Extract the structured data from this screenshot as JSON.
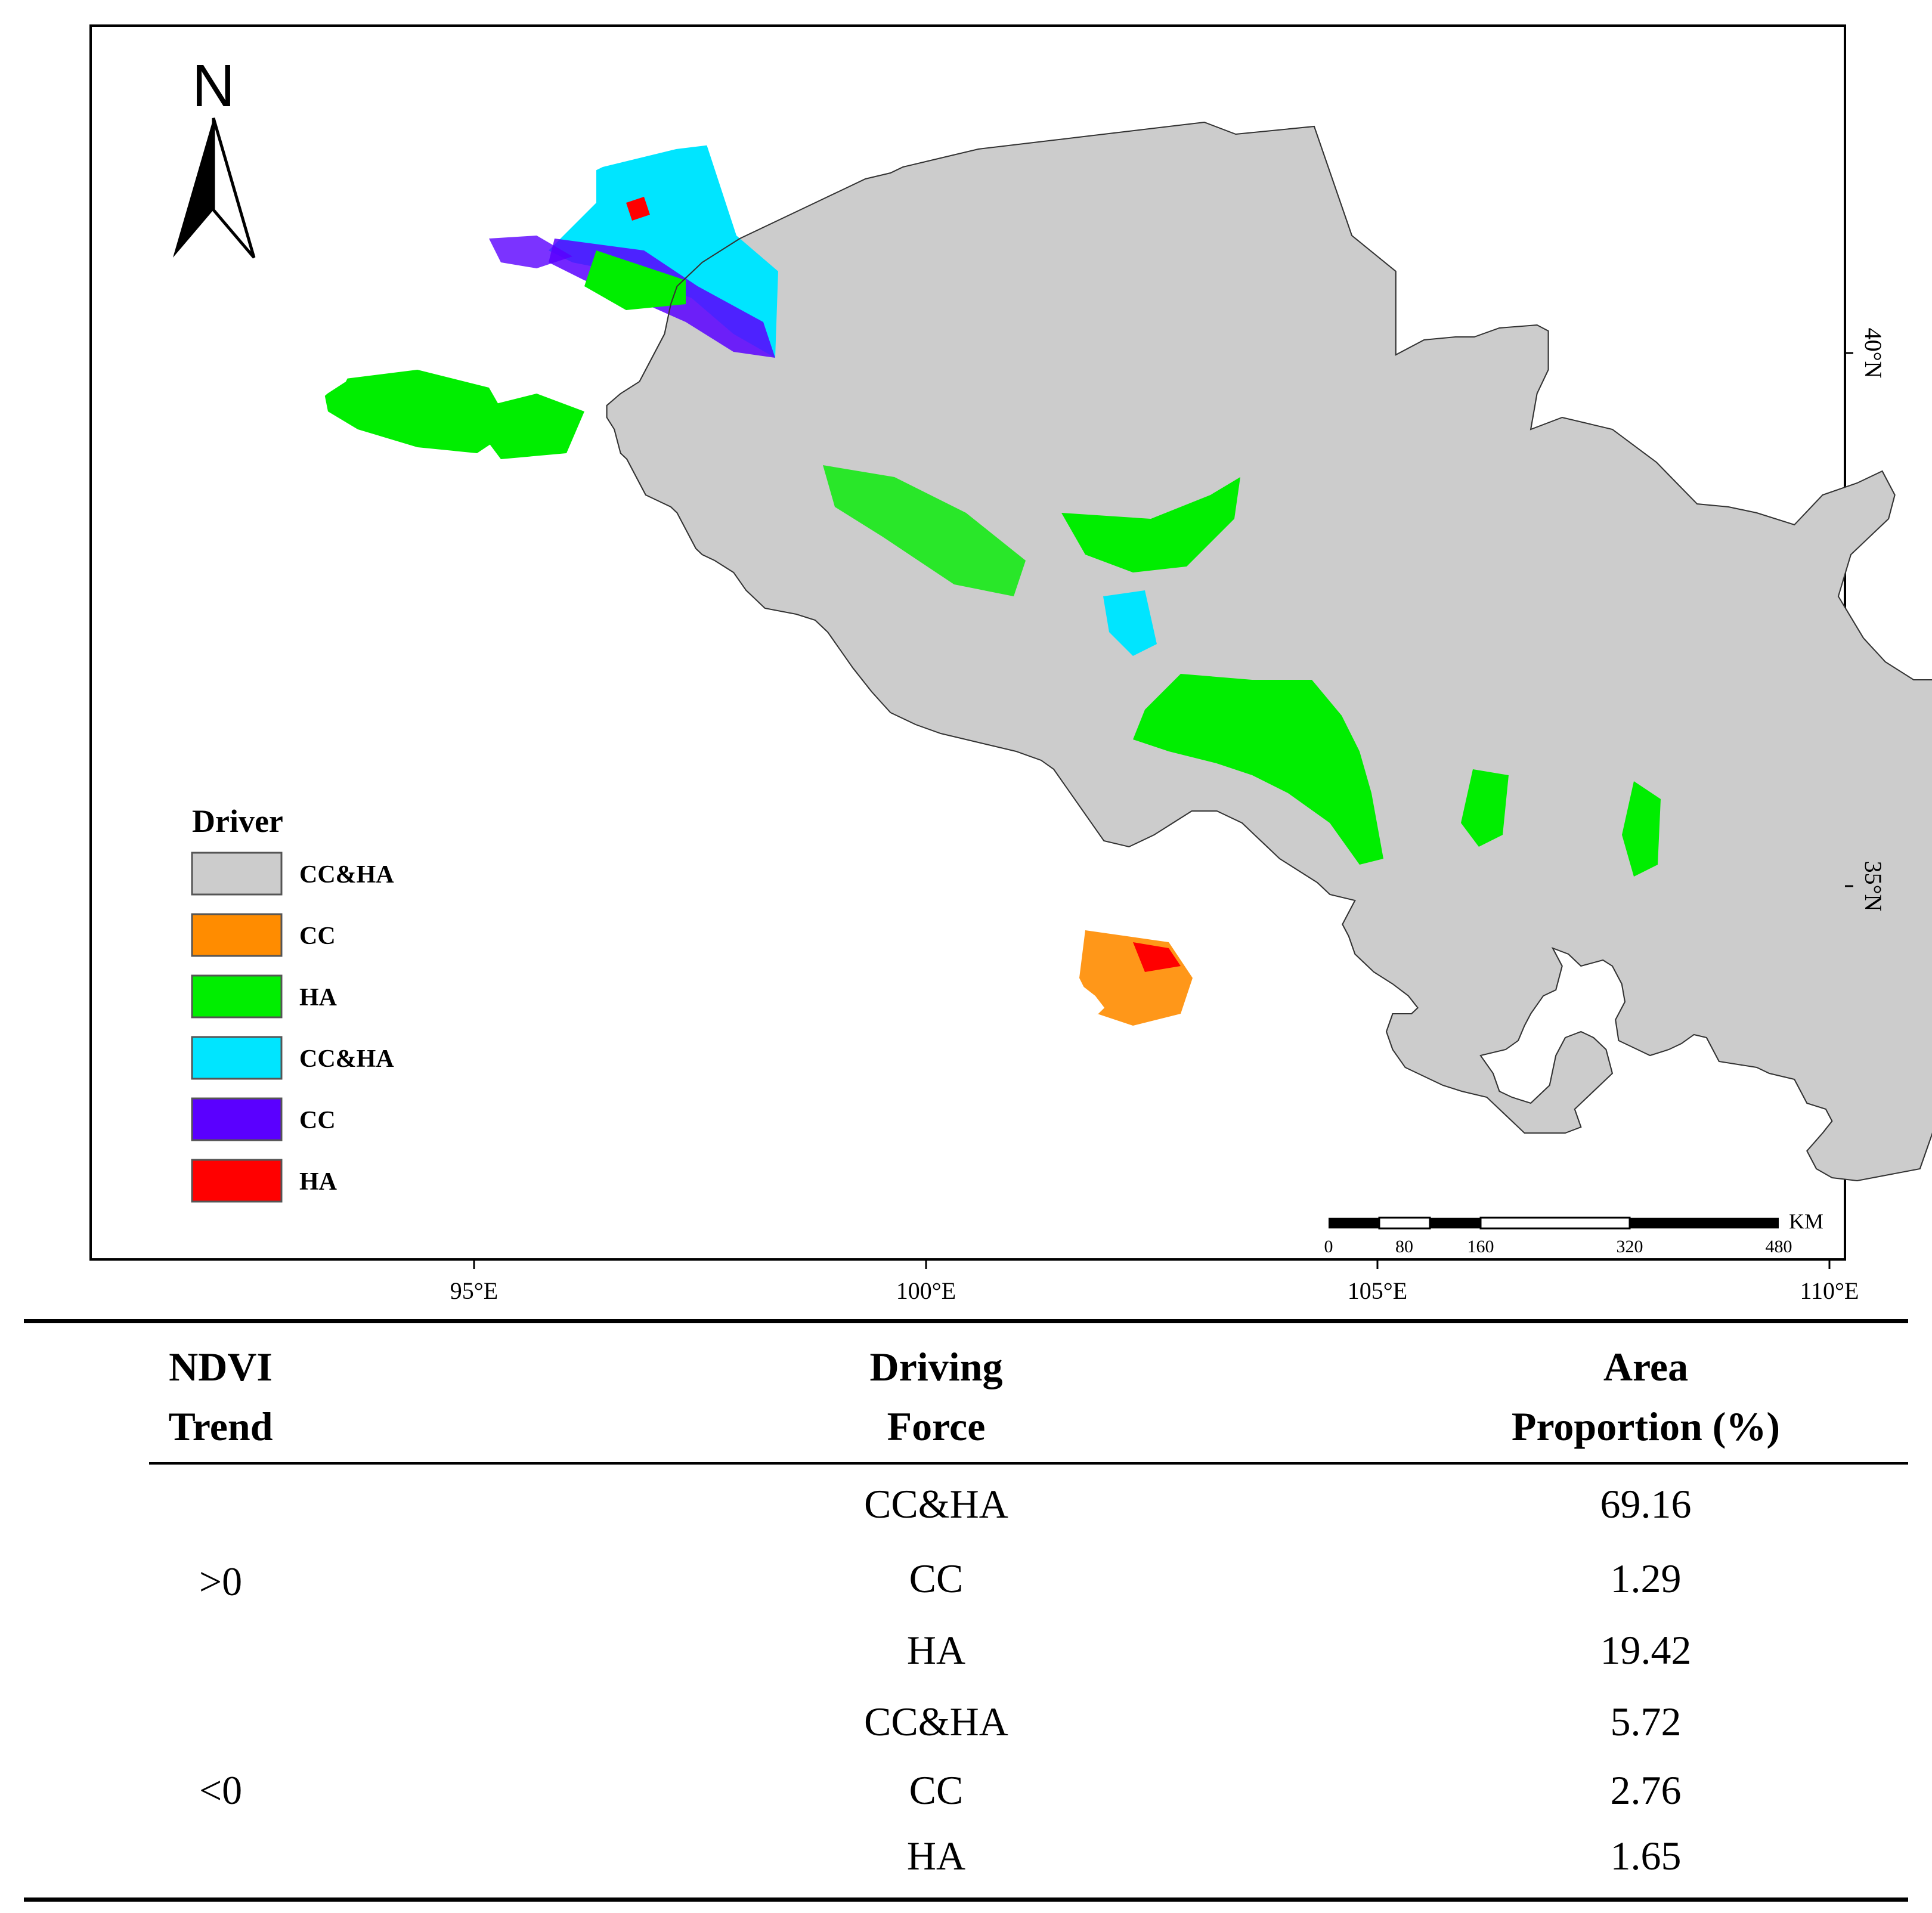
{
  "map": {
    "north_label": "N",
    "legend": {
      "title": "Driver",
      "items": [
        {
          "label": "CC&HA",
          "color": "#cccccc"
        },
        {
          "label": "CC",
          "color": "#ff8c00"
        },
        {
          "label": "HA",
          "color": "#00ee00"
        },
        {
          "label": "CC&HA",
          "color": "#00e5ff"
        },
        {
          "label": "CC",
          "color": "#5a00ff"
        },
        {
          "label": "HA",
          "color": "#ff0000"
        }
      ]
    },
    "x_ticks": [
      "95°E",
      "100°E",
      "105°E",
      "110°E"
    ],
    "y_ticks": [
      "40°N",
      "35°N"
    ],
    "scale_bar": {
      "unit": "KM",
      "labels": [
        "0",
        "80",
        "160",
        "320",
        "480"
      ]
    }
  },
  "table": {
    "headers": [
      [
        "NDVI",
        "Trend"
      ],
      [
        "Driving",
        "Force"
      ],
      [
        "Area",
        "Proportion (%)"
      ]
    ],
    "groups": [
      {
        "trend": ">0",
        "rows": [
          {
            "force": "CC&HA",
            "proportion": "69.16"
          },
          {
            "force": "CC",
            "proportion": "1.29"
          },
          {
            "force": "HA",
            "proportion": "19.42"
          }
        ]
      },
      {
        "trend": "<0",
        "rows": [
          {
            "force": "CC&HA",
            "proportion": "5.72"
          },
          {
            "force": "CC",
            "proportion": "2.76"
          },
          {
            "force": "HA",
            "proportion": "1.65"
          }
        ]
      }
    ]
  }
}
